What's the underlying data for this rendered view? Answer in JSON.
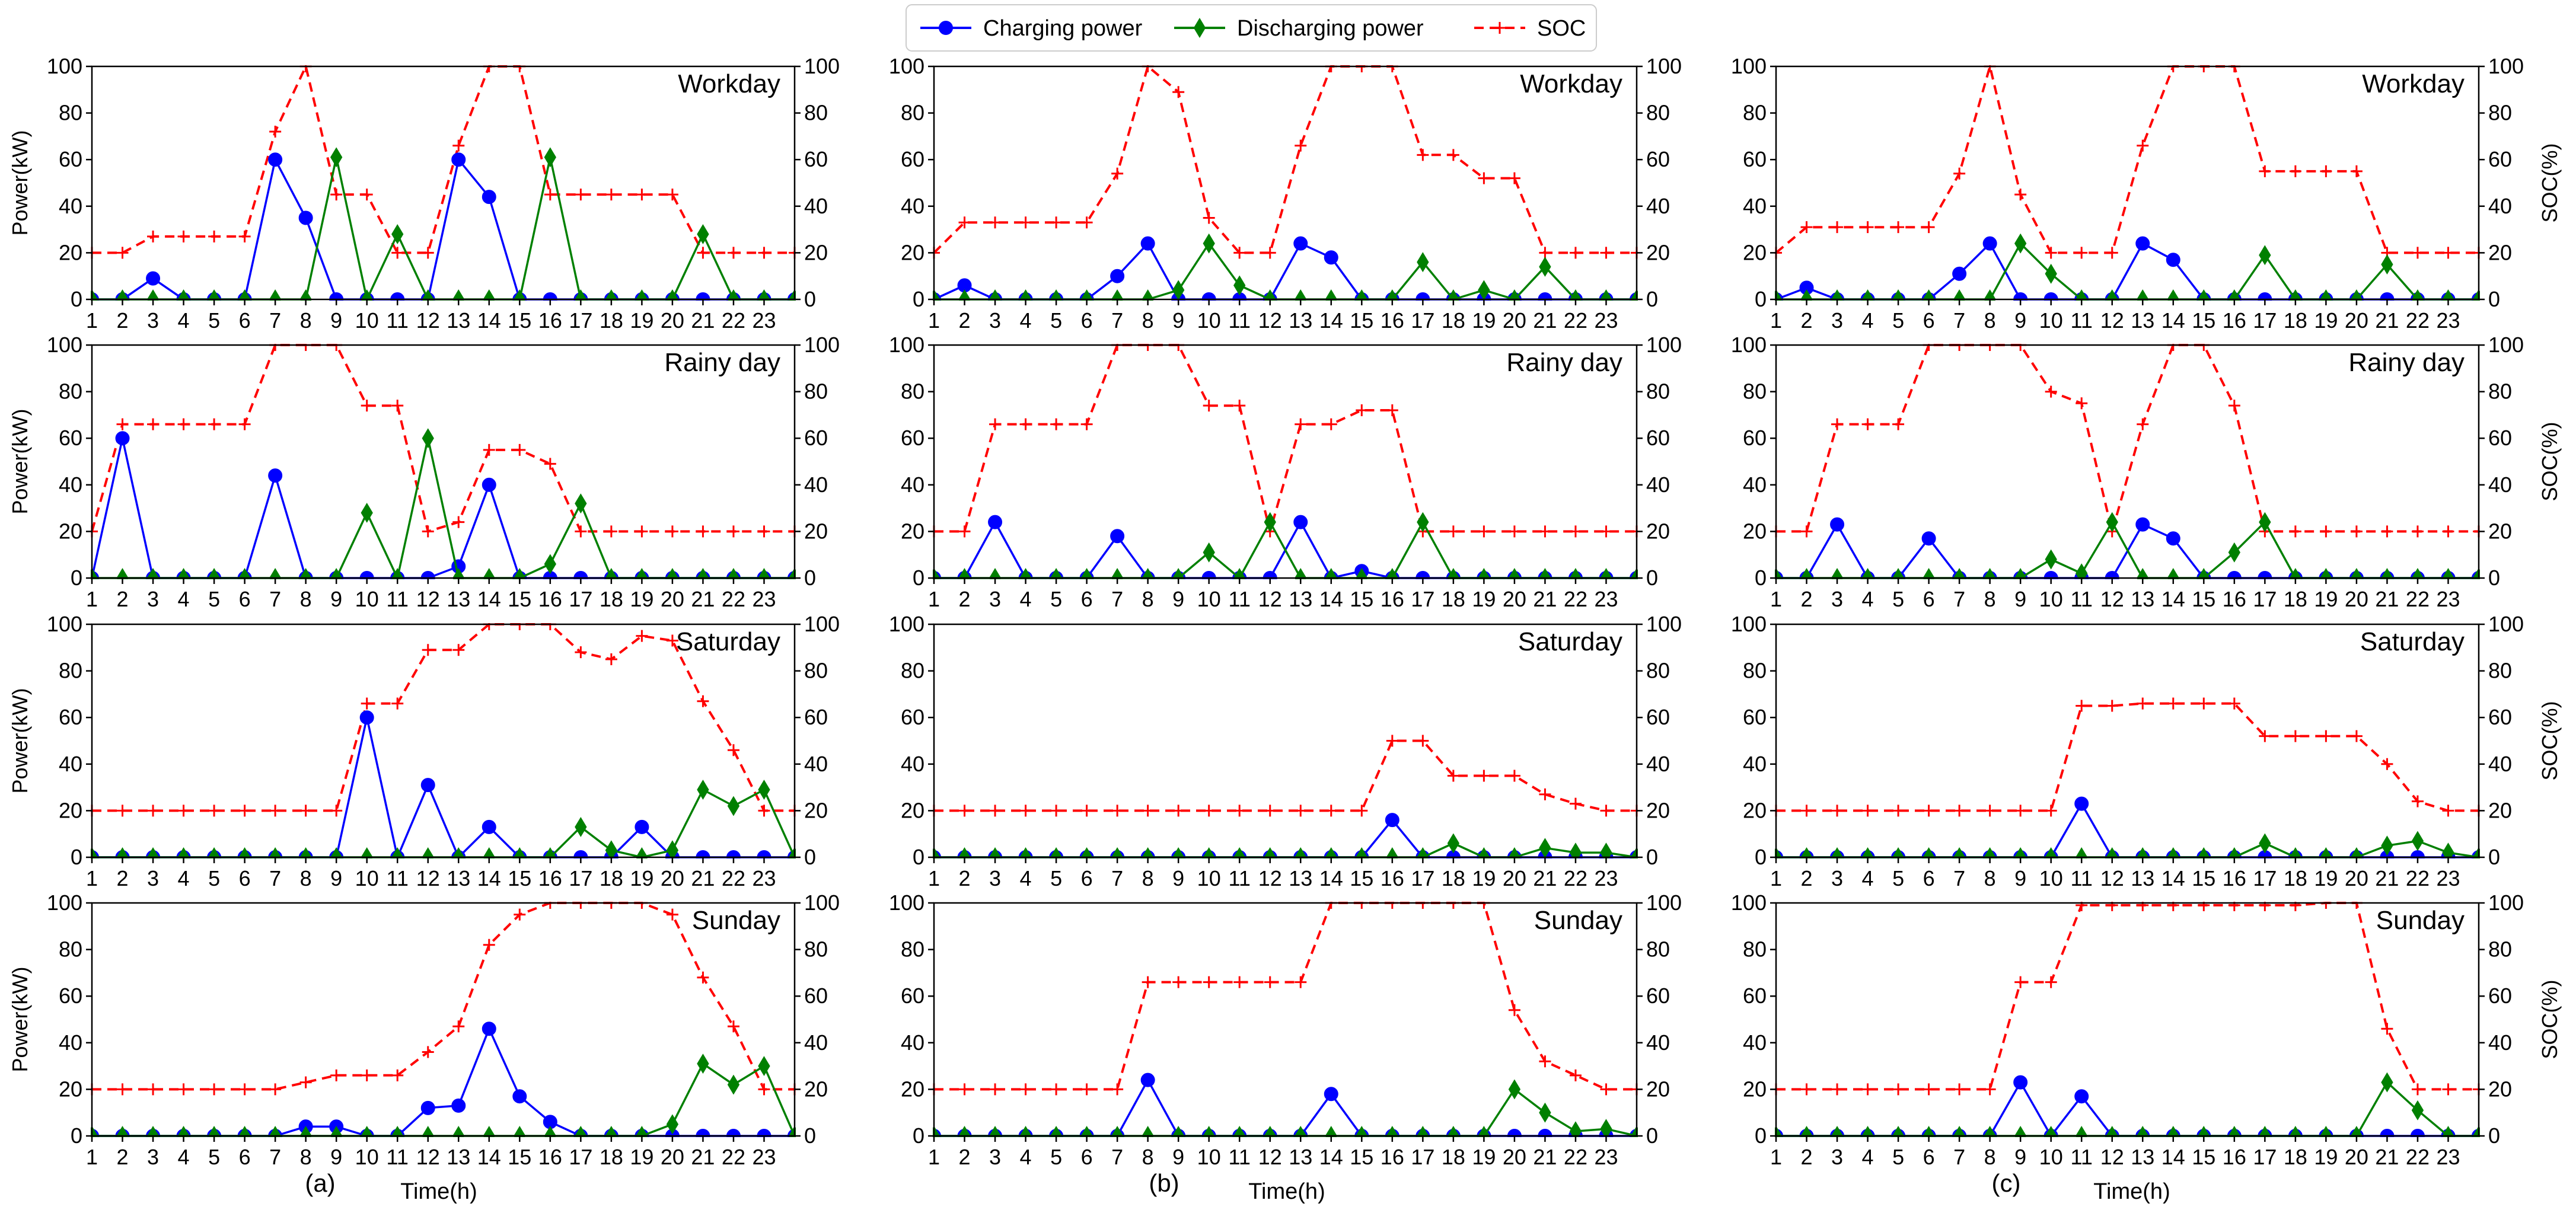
{
  "legend": {
    "entries": [
      {
        "label": "Charging power",
        "color": "#0000ff",
        "marker": "circle",
        "dash": false
      },
      {
        "label": "Discharging power",
        "color": "#008000",
        "marker": "diamond",
        "dash": false
      },
      {
        "label": "SOC",
        "color": "#ff0000",
        "marker": "plus",
        "dash": true
      }
    ]
  },
  "axes_text": {
    "left_ylabel": "Power(kW)",
    "right_ylabel": "SOC(%)",
    "xlabel": "Time(h)",
    "column_labels": [
      "(a)",
      "(b)",
      "(c)"
    ],
    "row_tags": [
      "Workday",
      "Rainy day",
      "Saturday",
      "Sunday"
    ],
    "y_ticks": [
      "0",
      "20",
      "40",
      "60",
      "80",
      "100"
    ],
    "x_ticks": [
      "1",
      "2",
      "3",
      "4",
      "5",
      "6",
      "7",
      "8",
      "9",
      "10",
      "11",
      "12",
      "13",
      "14",
      "15",
      "16",
      "17",
      "18",
      "19",
      "20",
      "21",
      "22",
      "23"
    ]
  },
  "chart_data": {
    "type": "line",
    "x": [
      1,
      2,
      3,
      4,
      5,
      6,
      7,
      8,
      9,
      10,
      11,
      12,
      13,
      14,
      15,
      16,
      17,
      18,
      19,
      20,
      21,
      22,
      23,
      24
    ],
    "xlim": [
      1,
      24
    ],
    "ylim_power": [
      0,
      100
    ],
    "ylim_soc": [
      0,
      100
    ],
    "grid": false,
    "legend_position": "top-center",
    "panels": [
      {
        "column": "(a)",
        "tag": "Workday",
        "charging": [
          0,
          0,
          9,
          0,
          0,
          0,
          60,
          35,
          0,
          0,
          0,
          0,
          60,
          44,
          0,
          0,
          0,
          0,
          0,
          0,
          0,
          0,
          0,
          0
        ],
        "discharging": [
          0,
          0,
          0,
          0,
          0,
          0,
          0,
          0,
          61,
          0,
          28,
          0,
          0,
          0,
          0,
          61,
          0,
          0,
          0,
          0,
          28,
          0,
          0,
          0
        ],
        "soc": [
          20,
          20,
          27,
          27,
          27,
          27,
          72,
          100,
          45,
          45,
          20,
          20,
          66,
          100,
          100,
          45,
          45,
          45,
          45,
          45,
          20,
          20,
          20,
          20
        ]
      },
      {
        "column": "(b)",
        "tag": "Workday",
        "charging": [
          0,
          6,
          0,
          0,
          0,
          0,
          10,
          24,
          0,
          0,
          0,
          0,
          24,
          18,
          0,
          0,
          0,
          0,
          0,
          0,
          0,
          0,
          0,
          0
        ],
        "discharging": [
          0,
          0,
          0,
          0,
          0,
          0,
          0,
          0,
          4,
          24,
          6,
          0,
          0,
          0,
          0,
          0,
          16,
          0,
          4,
          0,
          14,
          0,
          0,
          0
        ],
        "soc": [
          20,
          33,
          33,
          33,
          33,
          33,
          54,
          100,
          89,
          35,
          20,
          20,
          66,
          100,
          100,
          100,
          62,
          62,
          52,
          52,
          20,
          20,
          20,
          20
        ]
      },
      {
        "column": "(c)",
        "tag": "Workday",
        "charging": [
          0,
          5,
          0,
          0,
          0,
          0,
          11,
          24,
          0,
          0,
          0,
          0,
          24,
          17,
          0,
          0,
          0,
          0,
          0,
          0,
          0,
          0,
          0,
          0
        ],
        "discharging": [
          0,
          0,
          0,
          0,
          0,
          0,
          0,
          0,
          24,
          11,
          0,
          0,
          0,
          0,
          0,
          0,
          19,
          0,
          0,
          0,
          15,
          0,
          0,
          0
        ],
        "soc": [
          20,
          31,
          31,
          31,
          31,
          31,
          54,
          100,
          45,
          20,
          20,
          20,
          66,
          100,
          100,
          100,
          55,
          55,
          55,
          55,
          20,
          20,
          20,
          20
        ]
      },
      {
        "column": "(a)",
        "tag": "Rainy day",
        "charging": [
          0,
          60,
          0,
          0,
          0,
          0,
          44,
          0,
          0,
          0,
          0,
          0,
          5,
          40,
          0,
          0,
          0,
          0,
          0,
          0,
          0,
          0,
          0,
          0
        ],
        "discharging": [
          0,
          0,
          0,
          0,
          0,
          0,
          0,
          0,
          0,
          28,
          0,
          60,
          0,
          0,
          0,
          6,
          32,
          0,
          0,
          0,
          0,
          0,
          0,
          0
        ],
        "soc": [
          20,
          66,
          66,
          66,
          66,
          66,
          100,
          100,
          100,
          74,
          74,
          20,
          24,
          55,
          55,
          49,
          20,
          20,
          20,
          20,
          20,
          20,
          20,
          20
        ]
      },
      {
        "column": "(b)",
        "tag": "Rainy day",
        "charging": [
          0,
          0,
          24,
          0,
          0,
          0,
          18,
          0,
          0,
          0,
          0,
          0,
          24,
          0,
          3,
          0,
          0,
          0,
          0,
          0,
          0,
          0,
          0,
          0
        ],
        "discharging": [
          0,
          0,
          0,
          0,
          0,
          0,
          0,
          0,
          0,
          11,
          0,
          24,
          0,
          0,
          0,
          0,
          24,
          0,
          0,
          0,
          0,
          0,
          0,
          0
        ],
        "soc": [
          20,
          20,
          66,
          66,
          66,
          66,
          100,
          100,
          100,
          74,
          74,
          20,
          66,
          66,
          72,
          72,
          20,
          20,
          20,
          20,
          20,
          20,
          20,
          20
        ]
      },
      {
        "column": "(c)",
        "tag": "Rainy day",
        "charging": [
          0,
          0,
          23,
          0,
          0,
          17,
          0,
          0,
          0,
          0,
          0,
          0,
          23,
          17,
          0,
          0,
          0,
          0,
          0,
          0,
          0,
          0,
          0,
          0
        ],
        "discharging": [
          0,
          0,
          0,
          0,
          0,
          0,
          0,
          0,
          0,
          8,
          2,
          24,
          0,
          0,
          0,
          11,
          24,
          0,
          0,
          0,
          0,
          0,
          0,
          0
        ],
        "soc": [
          20,
          20,
          66,
          66,
          66,
          100,
          100,
          100,
          100,
          80,
          75,
          20,
          66,
          100,
          100,
          74,
          20,
          20,
          20,
          20,
          20,
          20,
          20,
          20
        ]
      },
      {
        "column": "(a)",
        "tag": "Saturday",
        "charging": [
          0,
          0,
          0,
          0,
          0,
          0,
          0,
          0,
          0,
          60,
          0,
          31,
          0,
          13,
          0,
          0,
          0,
          0,
          13,
          0,
          0,
          0,
          0,
          0
        ],
        "discharging": [
          0,
          0,
          0,
          0,
          0,
          0,
          0,
          0,
          0,
          0,
          0,
          0,
          0,
          0,
          0,
          0,
          13,
          3,
          0,
          3,
          29,
          22,
          29,
          0
        ],
        "soc": [
          20,
          20,
          20,
          20,
          20,
          20,
          20,
          20,
          20,
          66,
          66,
          89,
          89,
          100,
          100,
          100,
          88,
          85,
          95,
          93,
          67,
          46,
          20,
          20
        ]
      },
      {
        "column": "(b)",
        "tag": "Saturday",
        "charging": [
          0,
          0,
          0,
          0,
          0,
          0,
          0,
          0,
          0,
          0,
          0,
          0,
          0,
          0,
          0,
          16,
          0,
          0,
          0,
          0,
          0,
          0,
          0,
          0
        ],
        "discharging": [
          0,
          0,
          0,
          0,
          0,
          0,
          0,
          0,
          0,
          0,
          0,
          0,
          0,
          0,
          0,
          0,
          0,
          6,
          0,
          0,
          4,
          2,
          2,
          0
        ],
        "soc": [
          20,
          20,
          20,
          20,
          20,
          20,
          20,
          20,
          20,
          20,
          20,
          20,
          20,
          20,
          20,
          50,
          50,
          35,
          35,
          35,
          27,
          23,
          20,
          20
        ]
      },
      {
        "column": "(c)",
        "tag": "Saturday",
        "charging": [
          0,
          0,
          0,
          0,
          0,
          0,
          0,
          0,
          0,
          0,
          23,
          0,
          0,
          0,
          0,
          0,
          0,
          0,
          0,
          0,
          0,
          0,
          0,
          0
        ],
        "discharging": [
          0,
          0,
          0,
          0,
          0,
          0,
          0,
          0,
          0,
          0,
          0,
          0,
          0,
          0,
          0,
          0,
          6,
          0,
          0,
          0,
          5,
          7,
          2,
          0
        ],
        "soc": [
          20,
          20,
          20,
          20,
          20,
          20,
          20,
          20,
          20,
          20,
          65,
          65,
          66,
          66,
          66,
          66,
          52,
          52,
          52,
          52,
          40,
          24,
          20,
          20
        ]
      },
      {
        "column": "(a)",
        "tag": "Sunday",
        "charging": [
          0,
          0,
          0,
          0,
          0,
          0,
          0,
          4,
          4,
          0,
          0,
          12,
          13,
          46,
          17,
          6,
          0,
          0,
          0,
          0,
          0,
          0,
          0,
          0
        ],
        "discharging": [
          0,
          0,
          0,
          0,
          0,
          0,
          0,
          0,
          0,
          0,
          0,
          0,
          0,
          0,
          0,
          0,
          0,
          0,
          0,
          5,
          31,
          22,
          30,
          0
        ],
        "soc": [
          20,
          20,
          20,
          20,
          20,
          20,
          20,
          23,
          26,
          26,
          26,
          36,
          47,
          82,
          95,
          100,
          100,
          100,
          100,
          95,
          68,
          47,
          20,
          20
        ]
      },
      {
        "column": "(b)",
        "tag": "Sunday",
        "charging": [
          0,
          0,
          0,
          0,
          0,
          0,
          0,
          24,
          0,
          0,
          0,
          0,
          0,
          18,
          0,
          0,
          0,
          0,
          0,
          0,
          0,
          0,
          0,
          0
        ],
        "discharging": [
          0,
          0,
          0,
          0,
          0,
          0,
          0,
          0,
          0,
          0,
          0,
          0,
          0,
          0,
          0,
          0,
          0,
          0,
          0,
          20,
          10,
          2,
          3,
          0
        ],
        "soc": [
          20,
          20,
          20,
          20,
          20,
          20,
          20,
          66,
          66,
          66,
          66,
          66,
          66,
          100,
          100,
          100,
          100,
          100,
          100,
          54,
          32,
          26,
          20,
          20
        ]
      },
      {
        "column": "(c)",
        "tag": "Sunday",
        "charging": [
          0,
          0,
          0,
          0,
          0,
          0,
          0,
          0,
          23,
          0,
          17,
          0,
          0,
          0,
          0,
          0,
          0,
          0,
          0,
          0,
          0,
          0,
          0,
          0
        ],
        "discharging": [
          0,
          0,
          0,
          0,
          0,
          0,
          0,
          0,
          0,
          0,
          0,
          0,
          0,
          0,
          0,
          0,
          0,
          0,
          0,
          0,
          23,
          11,
          0,
          0
        ],
        "soc": [
          20,
          20,
          20,
          20,
          20,
          20,
          20,
          20,
          66,
          66,
          99,
          99,
          99,
          99,
          99,
          99,
          99,
          99,
          100,
          100,
          46,
          20,
          20,
          20
        ]
      }
    ]
  }
}
